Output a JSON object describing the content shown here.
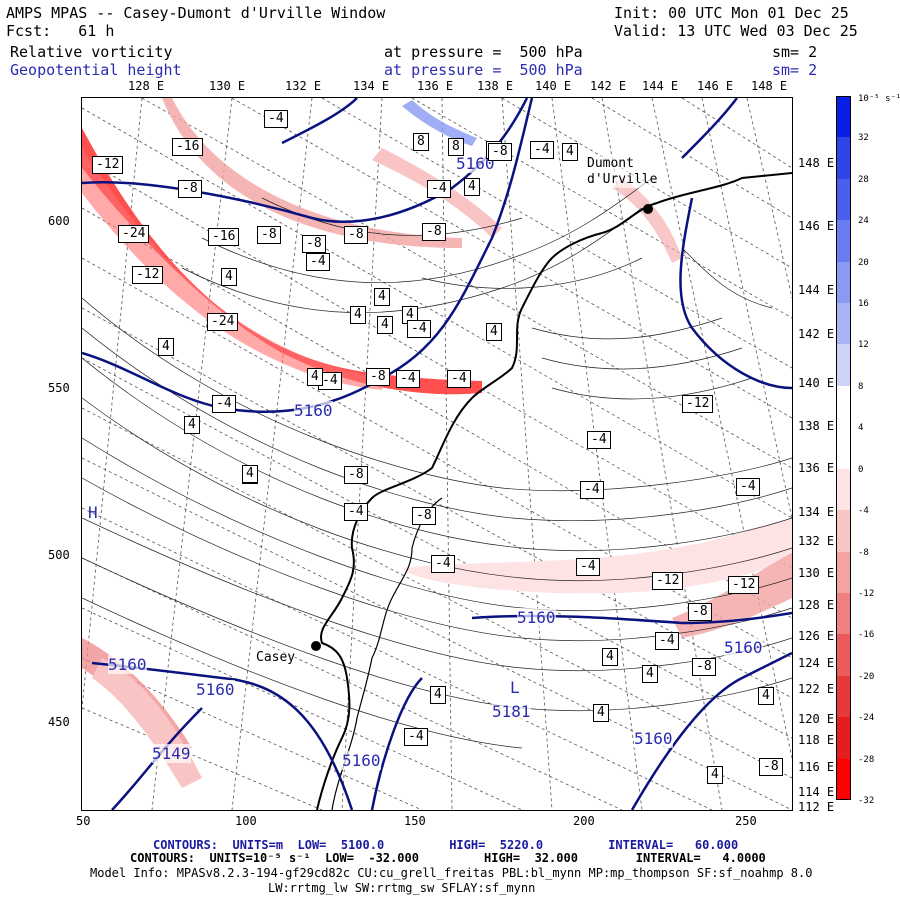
{
  "header": {
    "title": "AMPS MPAS -- Casey-Dumont d'Urville Window",
    "fcst": "Fcst:   61 h",
    "init": "Init: 00 UTC Mon 01 Dec 25",
    "valid": "Valid: 13 UTC Wed 03 Dec 25",
    "field1": "Relative vorticity",
    "field2": "Geopotential height",
    "pressure1": "at pressure =  500 hPa",
    "pressure2": "at pressure =  500 hPa",
    "sm1": "sm= 2",
    "sm2": "sm= 2"
  },
  "longitude_labels": [
    "128 E",
    "130 E",
    "132 E",
    "134 E",
    "136 E",
    "138 E",
    "140 E",
    "142 E",
    "144 E",
    "146 E",
    "148 E"
  ],
  "latitude_labels": [
    "148 E",
    "146 E",
    "144 E",
    "142 E",
    "140 E",
    "138 E",
    "136 E",
    "134 E",
    "132 E",
    "130 E",
    "128 E",
    "126 E",
    "124 E",
    "122 E",
    "120 E",
    "118 E",
    "116 E",
    "114 E",
    "112 E"
  ],
  "x_axis_labels": [
    "50",
    "100",
    "150",
    "200",
    "250"
  ],
  "y_axis_labels": [
    "600",
    "550",
    "500",
    "450"
  ],
  "colorbar": {
    "unit": "10⁻⁵ s⁻¹",
    "labels": [
      "32",
      "28",
      "24",
      "20",
      "16",
      "12",
      "8",
      "4",
      "0",
      "-4",
      "-8",
      "-12",
      "-16",
      "-20",
      "-24",
      "-28",
      "-32"
    ],
    "colors": [
      "#0a1fe6",
      "#2f45e8",
      "#4a5fec",
      "#6a7df0",
      "#8a9af2",
      "#aab4f5",
      "#cdd3f9",
      "#ffffff",
      "#ffffff",
      "#fde3e3",
      "#f9c4c4",
      "#f4a2a2",
      "#ef8080",
      "#ea5c5c",
      "#e63a3a",
      "#e21e1e",
      "#ff0000"
    ]
  },
  "places": [
    {
      "name": "Casey"
    },
    {
      "name": "Dumont\nd'Urville"
    }
  ],
  "height_labels": [
    "5160",
    "5160",
    "5160",
    "5160",
    "5160",
    "5160",
    "5160",
    "5160",
    "5149",
    "5181"
  ],
  "pressure_centers": [
    "H",
    "L"
  ],
  "box_labels": [
    "-4",
    "-16",
    "-12",
    "-8",
    "-24",
    "-12",
    "-24",
    "-16",
    "-8",
    "-8",
    "-8",
    "-8",
    "-4",
    "4",
    "8",
    "8",
    "8",
    "-8",
    "-4",
    "4",
    "-4",
    "4",
    "4",
    "4",
    "4",
    "4",
    "-4",
    "4",
    "-4",
    "-8",
    "-4",
    "-4",
    "4",
    "-4",
    "4",
    "4",
    "4",
    "-4",
    "4",
    "-4",
    "-8",
    "-8",
    "-12",
    "-4",
    "-4",
    "4",
    "4",
    "4",
    "4",
    "-12",
    "-8",
    "-4",
    "-8",
    "4",
    "-8",
    "-12",
    "-4",
    "-4",
    "-4",
    "4"
  ],
  "footer": {
    "line1": "CONTOURS:  UNITS=m  LOW=  5100.0         HIGH=  5220.0         INTERVAL=   60.000",
    "line2": "CONTOURS:  UNITS=10⁻⁵ s⁻¹  LOW=  -32.000         HIGH=  32.000        INTERVAL=   4.0000",
    "line3": "Model Info: MPASv8.2.3-194-gf29cd82c CU:cu_grell_freitas PBL:bl_mynn MP:mp_thompson SF:sf_noahmp 8.0",
    "line4": "LW:rrtmg_lw SW:rrtmg_sw SFLAY:sf_mynn"
  }
}
